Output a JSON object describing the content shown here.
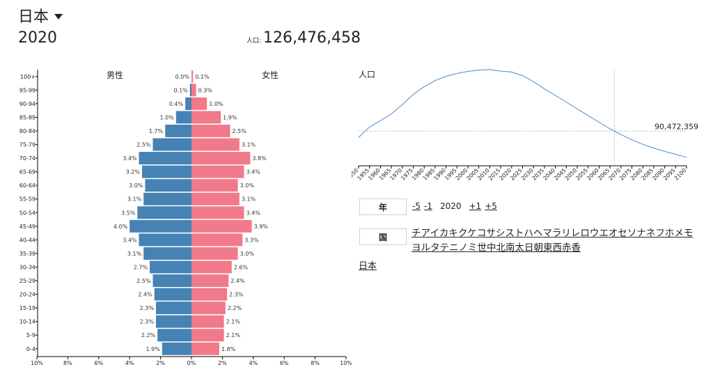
{
  "header": {
    "country": "日本",
    "year": "2020",
    "population_label": "人口:",
    "population": "126,476,458"
  },
  "pyramid": {
    "male_label": "男性",
    "female_label": "女性",
    "x_ticks": [
      "10%",
      "8%",
      "6%",
      "4%",
      "2%",
      "0%",
      "2%",
      "4%",
      "6%",
      "8%",
      "10%"
    ]
  },
  "chart_data": [
    {
      "type": "bar",
      "title": "",
      "orientation": "horizontal",
      "categories": [
        "100+",
        "95-99",
        "90-94",
        "85-89",
        "80-84",
        "75-79",
        "70-74",
        "65-69",
        "60-64",
        "55-59",
        "50-54",
        "45-49",
        "40-44",
        "35-39",
        "30-34",
        "25-29",
        "20-24",
        "15-19",
        "10-14",
        "5-9",
        "0-4"
      ],
      "series": [
        {
          "name": "男性",
          "color": "#4682b4",
          "values": [
            0.0,
            0.1,
            0.4,
            1.0,
            1.7,
            2.5,
            3.4,
            3.2,
            3.0,
            3.1,
            3.5,
            4.0,
            3.4,
            3.1,
            2.7,
            2.5,
            2.4,
            2.3,
            2.3,
            2.2,
            1.9
          ],
          "labels": [
            "0.0%",
            "0.1%",
            "0.4%",
            "1.0%",
            "1.7%",
            "2.5%",
            "3.4%",
            "3.2%",
            "3.0%",
            "3.1%",
            "3.5%",
            "4.0%",
            "3.4%",
            "3.1%",
            "2.7%",
            "2.5%",
            "2.4%",
            "2.3%",
            "2.3%",
            "2.2%",
            "1.9%"
          ]
        },
        {
          "name": "女性",
          "color": "#f07a8a",
          "values": [
            0.1,
            0.3,
            1.0,
            1.9,
            2.5,
            3.1,
            3.8,
            3.4,
            3.0,
            3.1,
            3.4,
            3.9,
            3.3,
            3.0,
            2.6,
            2.4,
            2.3,
            2.2,
            2.1,
            2.1,
            1.8
          ],
          "labels": [
            "0.1%",
            "0.3%",
            "1.0%",
            "1.9%",
            "2.5%",
            "3.1%",
            "3.8%",
            "3.4%",
            "3.0%",
            "3.1%",
            "3.4%",
            "3.9%",
            "3.3%",
            "3.0%",
            "2.6%",
            "2.4%",
            "2.3%",
            "2.2%",
            "2.1%",
            "2.1%",
            "1.8%"
          ]
        }
      ],
      "xlim": [
        -10,
        10
      ],
      "xlabel": "",
      "ylabel": ""
    },
    {
      "type": "line",
      "title": "人口",
      "x": [
        1950,
        1955,
        1960,
        1965,
        1970,
        1975,
        1980,
        1985,
        1990,
        1995,
        2000,
        2005,
        2010,
        2015,
        2020,
        2025,
        2030,
        2035,
        2040,
        2045,
        2050,
        2055,
        2060,
        2065,
        2070,
        2075,
        2080,
        2085,
        2090,
        2095,
        2100
      ],
      "series": [
        {
          "name": "人口",
          "values": [
            82.8,
            89.8,
            94.1,
            98.6,
            104.7,
            111.6,
            116.8,
            120.8,
            123.6,
            125.5,
            126.9,
            127.8,
            128.1,
            127.1,
            126.5,
            124.1,
            120.1,
            115.2,
            110.9,
            106.5,
            101.9,
            97.4,
            93.0,
            88.6,
            84.8,
            81.3,
            78.3,
            75.8,
            73.6,
            71.6,
            69.7
          ]
        }
      ],
      "marker_year": 2067,
      "marker_value_label": "90,472,359",
      "xlim": [
        1950,
        2100
      ],
      "ylim": [
        64,
        129
      ],
      "tick_labels": [
        "1950",
        "1955",
        "1960",
        "1965",
        "1970",
        "1975",
        "1980",
        "1985",
        "1990",
        "1995",
        "2000",
        "2005",
        "2010",
        "2015",
        "2020",
        "2025",
        "2030",
        "2035",
        "2040",
        "2045",
        "2050",
        "2055",
        "2060",
        "2065",
        "2070",
        "2075",
        "2080",
        "2085",
        "2090",
        "2095",
        "2100"
      ],
      "xlabel": "",
      "ylabel": ""
    }
  ],
  "controls": {
    "year_label": "年",
    "minus5": "-5",
    "minus1": "-1",
    "current_year": "2020",
    "plus1": "+1",
    "plus5": "+5",
    "country_label": "国",
    "kana": [
      "チ",
      "ア",
      "イ",
      "カ",
      "キ",
      "ク",
      "ケ",
      "コ",
      "サ",
      "シ",
      "ス",
      "ト",
      "ハ",
      "ヘ",
      "マ",
      "ラ",
      "リ",
      "レ",
      "ロ",
      "ウ",
      "エ",
      "オ",
      "セ",
      "ソ",
      "ナ",
      "ネ",
      "フ",
      "ホ",
      "メ",
      "モ",
      "ヨ",
      "ル",
      "タ",
      "テ",
      "ニ",
      "ノ",
      "ミ",
      "世",
      "中",
      "北",
      "南",
      "太",
      "日",
      "朝",
      "東",
      "西",
      "赤",
      "香"
    ],
    "country_link": "日本"
  }
}
